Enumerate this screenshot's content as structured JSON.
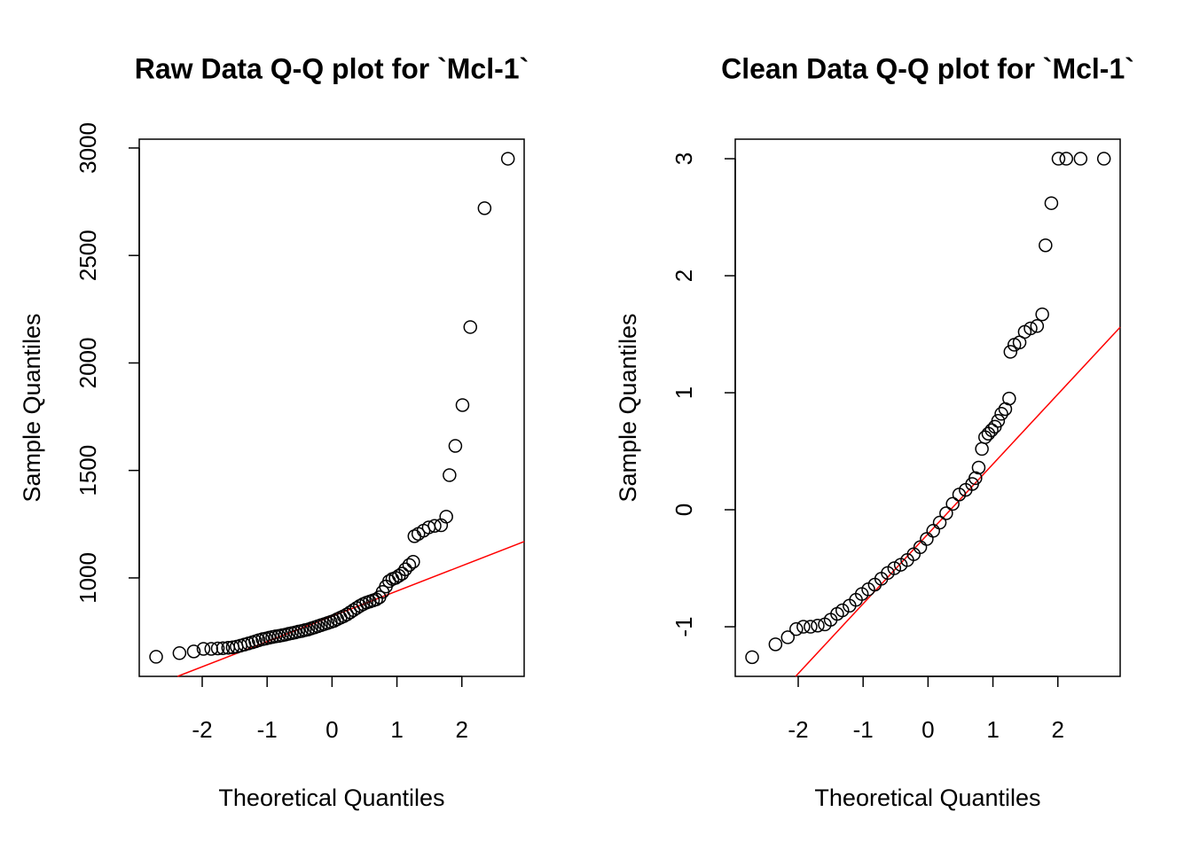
{
  "chart_data": [
    {
      "type": "scatter",
      "title": "Raw Data Q-Q plot for `Mcl-1`",
      "xlabel": "Theoretical Quantiles",
      "ylabel": "Sample Quantiles",
      "color": "#000000",
      "x": [
        -2.71,
        -2.35,
        -2.13,
        -1.98,
        -1.86,
        -1.76,
        -1.68,
        -1.6,
        -1.53,
        -1.47,
        -1.41,
        -1.35,
        -1.29,
        -1.23,
        -1.18,
        -1.13,
        -1.07,
        -1.02,
        -0.97,
        -0.92,
        -0.87,
        -0.82,
        -0.77,
        -0.72,
        -0.67,
        -0.62,
        -0.57,
        -0.52,
        -0.47,
        -0.42,
        -0.37,
        -0.32,
        -0.27,
        -0.22,
        -0.17,
        -0.12,
        -0.07,
        -0.02,
        0.03,
        0.08,
        0.13,
        0.18,
        0.23,
        0.28,
        0.33,
        0.38,
        0.43,
        0.48,
        0.53,
        0.58,
        0.63,
        0.68,
        0.73,
        0.78,
        0.83,
        0.88,
        0.93,
        0.98,
        1.03,
        1.08,
        1.13,
        1.19,
        1.25,
        1.27,
        1.33,
        1.41,
        1.49,
        1.58,
        1.68,
        1.76,
        1.81,
        1.9,
        2.01,
        2.13,
        2.35,
        2.71
      ],
      "values": [
        633,
        650,
        658,
        670,
        670,
        672,
        673,
        675,
        677,
        680,
        685,
        690,
        695,
        700,
        705,
        710,
        715,
        718,
        722,
        725,
        728,
        730,
        733,
        736,
        740,
        743,
        746,
        750,
        753,
        757,
        760,
        765,
        770,
        775,
        780,
        785,
        790,
        795,
        800,
        808,
        815,
        822,
        830,
        840,
        850,
        860,
        870,
        878,
        885,
        890,
        895,
        900,
        910,
        935,
        960,
        985,
        995,
        1000,
        1010,
        1020,
        1040,
        1060,
        1075,
        1194,
        1205,
        1220,
        1235,
        1242,
        1245,
        1285,
        1478,
        1614,
        1804,
        2167,
        2720,
        2950
      ],
      "xlim": [
        -2.97,
        2.96
      ],
      "ylim": [
        542,
        3041
      ],
      "xticks": [
        -2,
        -1,
        0,
        1,
        2
      ],
      "yticks": [
        1000,
        1500,
        2000,
        2500,
        3000
      ],
      "reference_line": {
        "color": "#ff0000",
        "x": [
          -2.38,
          2.96
        ],
        "y": [
          542,
          1169
        ]
      }
    },
    {
      "type": "scatter",
      "title": "Clean Data Q-Q plot for `Mcl-1`",
      "xlabel": "Theoretical Quantiles",
      "ylabel": "Sample Quantiles",
      "color": "#000000",
      "x": [
        -2.71,
        -2.35,
        -2.16,
        -2.03,
        -1.92,
        -1.81,
        -1.7,
        -1.59,
        -1.5,
        -1.4,
        -1.32,
        -1.21,
        -1.11,
        -1.02,
        -0.92,
        -0.82,
        -0.72,
        -0.62,
        -0.52,
        -0.42,
        -0.32,
        -0.22,
        -0.12,
        -0.02,
        0.08,
        0.18,
        0.28,
        0.38,
        0.48,
        0.58,
        0.68,
        0.73,
        0.78,
        0.83,
        0.88,
        0.93,
        0.98,
        1.03,
        1.08,
        1.13,
        1.19,
        1.25,
        1.27,
        1.33,
        1.41,
        1.49,
        1.58,
        1.68,
        1.76,
        1.81,
        1.9,
        2.01,
        2.13,
        2.35,
        2.71
      ],
      "values": [
        -1.26,
        -1.15,
        -1.09,
        -1.02,
        -1.0,
        -1.0,
        -0.99,
        -0.98,
        -0.94,
        -0.89,
        -0.86,
        -0.82,
        -0.77,
        -0.72,
        -0.68,
        -0.64,
        -0.59,
        -0.54,
        -0.5,
        -0.47,
        -0.43,
        -0.38,
        -0.32,
        -0.25,
        -0.18,
        -0.11,
        -0.03,
        0.05,
        0.13,
        0.17,
        0.22,
        0.27,
        0.36,
        0.52,
        0.62,
        0.65,
        0.68,
        0.71,
        0.76,
        0.82,
        0.86,
        0.95,
        1.35,
        1.41,
        1.43,
        1.52,
        1.55,
        1.57,
        1.67,
        2.26,
        2.62,
        3.0,
        3.0,
        3.0,
        3.0
      ],
      "xlim": [
        -2.97,
        2.96
      ],
      "ylim": [
        -1.424,
        3.167
      ],
      "xticks": [
        -2,
        -1,
        0,
        1,
        2
      ],
      "yticks": [
        -1,
        0,
        1,
        2,
        3
      ],
      "reference_line": {
        "color": "#ff0000",
        "x": [
          -2.04,
          2.96
        ],
        "y": [
          -1.424,
          1.56
        ]
      }
    }
  ]
}
